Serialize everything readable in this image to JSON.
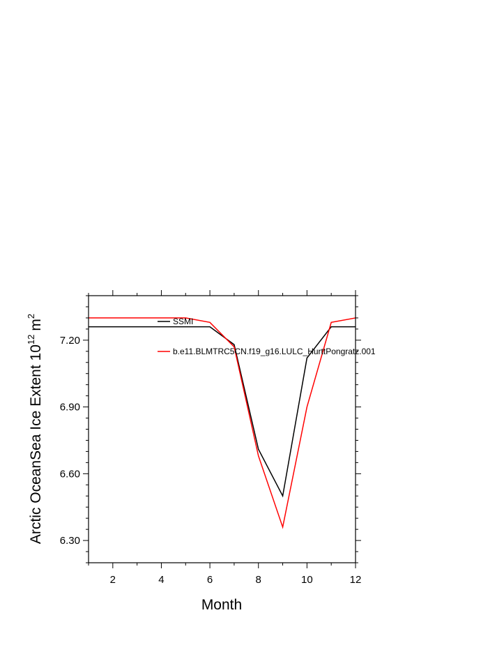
{
  "chart_data": {
    "type": "line",
    "title": "",
    "xlabel": "Month",
    "ylabel": "Arctic OceanSea Ice Extent 10",
    "ylabel_exponent": "12",
    "ylabel_unit": "m",
    "ylabel_unit_exponent": "2",
    "xlim": [
      1,
      12
    ],
    "ylim": [
      6.2,
      7.4
    ],
    "x_ticks": [
      2,
      4,
      6,
      8,
      10,
      12
    ],
    "x_tick_labels": [
      "2",
      "4",
      "6",
      "8",
      "10",
      "12"
    ],
    "y_ticks": [
      6.3,
      6.6,
      6.9,
      7.2
    ],
    "y_tick_labels": [
      "6.30",
      "6.60",
      "6.90",
      "7.20"
    ],
    "grid": false,
    "legend_position": "top-center",
    "x": [
      1,
      2,
      3,
      4,
      5,
      6,
      7,
      8,
      9,
      10,
      11,
      12
    ],
    "series": [
      {
        "name": "SSMI",
        "color": "#000000",
        "values": [
          7.26,
          7.26,
          7.26,
          7.26,
          7.26,
          7.26,
          7.18,
          6.71,
          6.5,
          7.12,
          7.26,
          7.26
        ]
      },
      {
        "name": "b.e11.BLMTRC5CN.f19_g16.LULC_HurttPongratz.001",
        "color": "#ff0000",
        "values": [
          7.3,
          7.3,
          7.3,
          7.3,
          7.3,
          7.28,
          7.17,
          6.68,
          6.36,
          6.9,
          7.28,
          7.3
        ]
      }
    ]
  }
}
